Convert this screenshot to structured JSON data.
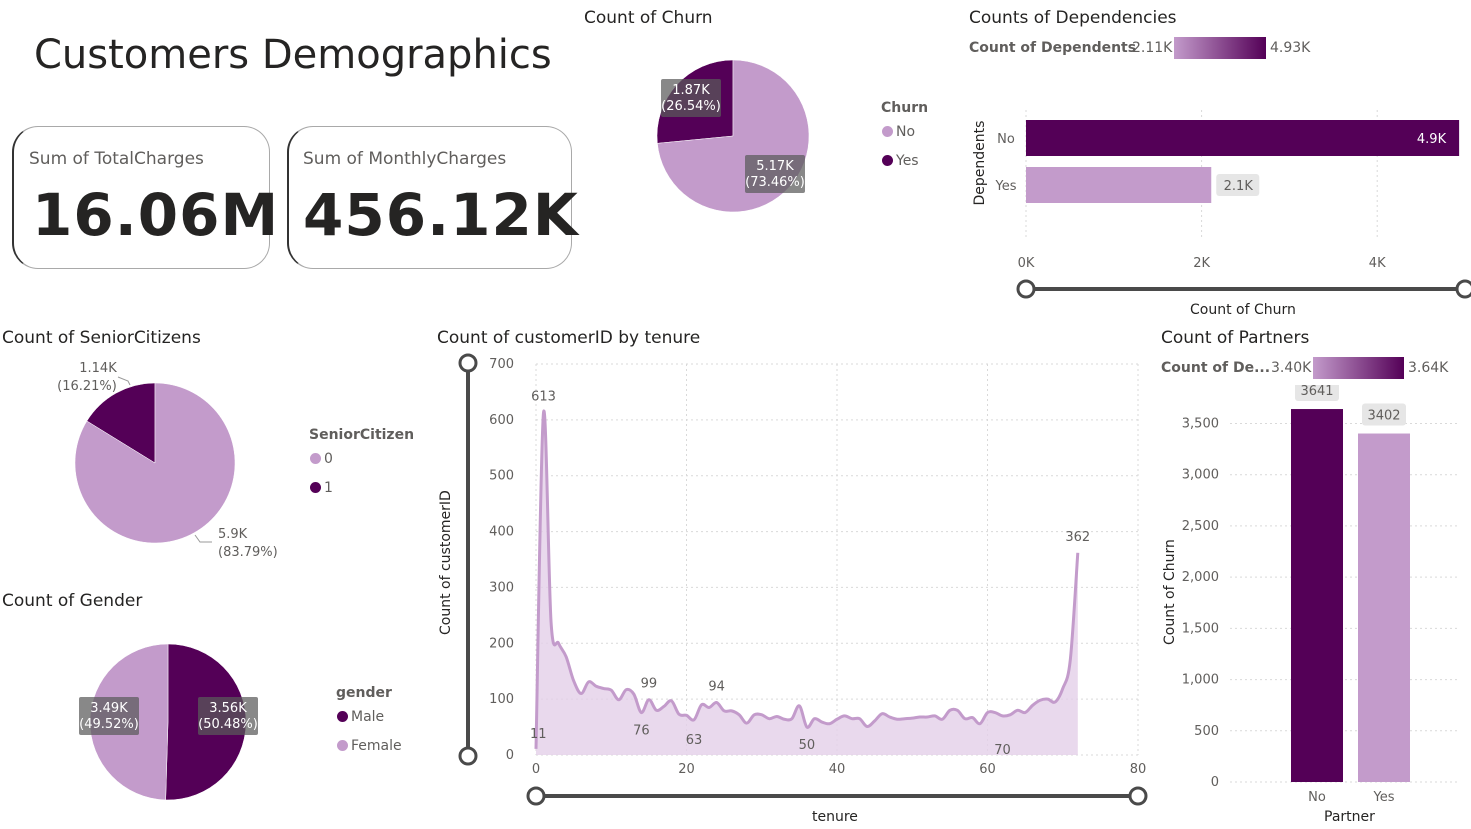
{
  "colors": {
    "light": "#c39bcb",
    "dark": "#540057",
    "grid": "#d9d9d9",
    "text": "#605e5c",
    "area": "#e4d0e8",
    "slider": "#4a4a4a"
  },
  "page_title": "Customers Demographics",
  "cards": [
    {
      "label": "Sum of TotalCharges",
      "value": "16.06M"
    },
    {
      "label": "Sum of MonthlyCharges",
      "value": "456.12K"
    }
  ],
  "churn": {
    "title": "Count of Churn",
    "legend_title": "Churn",
    "legend": [
      "No",
      "Yes"
    ]
  },
  "dependencies": {
    "title": "Counts of Dependencies",
    "gradient_label": "Count of Dependents",
    "gradient_min": "2.11K",
    "gradient_max": "4.93K",
    "y_title": "Dependents",
    "x_title": "Count of Churn"
  },
  "senior": {
    "title": "Count of SeniorCitizens",
    "legend_title": "SeniorCitizen",
    "legend": [
      "0",
      "1"
    ]
  },
  "gender": {
    "title": "Count of Gender",
    "legend_title": "gender",
    "legend": [
      "Male",
      "Female"
    ]
  },
  "tenure": {
    "title": "Count of customerID by tenure",
    "y_title": "Count of customerID",
    "x_title": "tenure"
  },
  "partners": {
    "title": "Count of Partners",
    "gradient_label": "Count of De...",
    "gradient_min": "3.40K",
    "gradient_max": "3.64K",
    "y_title": "Count of Churn",
    "x_title": "Partner"
  },
  "chart_data": [
    {
      "id": "churn_pie",
      "type": "pie",
      "title": "Count of Churn",
      "slices": [
        {
          "name": "No",
          "value": 5174,
          "label": "5.17K",
          "pct": "(73.46%)"
        },
        {
          "name": "Yes",
          "value": 1869,
          "label": "1.87K",
          "pct": "(26.54%)"
        }
      ]
    },
    {
      "id": "dependents_bar",
      "type": "bar",
      "title": "Counts of Dependencies",
      "orientation": "horizontal",
      "categories": [
        "No",
        "Yes"
      ],
      "values": [
        4933,
        2110
      ],
      "data_labels": [
        "4.9K",
        "2.1K"
      ],
      "xlabel": "Count of Churn",
      "ylabel": "Dependents",
      "xlim": [
        0,
        5000
      ],
      "xticks": [
        0,
        2000,
        4000
      ],
      "xtick_labels": [
        "0K",
        "2K",
        "4K"
      ]
    },
    {
      "id": "senior_pie",
      "type": "pie",
      "title": "Count of SeniorCitizens",
      "slices": [
        {
          "name": "0",
          "value": 5901,
          "label": "5.9K",
          "pct": "(83.79%)"
        },
        {
          "name": "1",
          "value": 1142,
          "label": "1.14K",
          "pct": "(16.21%)"
        }
      ]
    },
    {
      "id": "gender_pie",
      "type": "pie",
      "title": "Count of Gender",
      "slices": [
        {
          "name": "Male",
          "value": 3555,
          "label": "3.56K",
          "pct": "(50.48%)"
        },
        {
          "name": "Female",
          "value": 3488,
          "label": "3.49K",
          "pct": "(49.52%)"
        }
      ]
    },
    {
      "id": "tenure_area",
      "type": "area",
      "title": "Count of customerID by tenure",
      "xlabel": "tenure",
      "ylabel": "Count of customerID",
      "xlim": [
        0,
        80
      ],
      "ylim": [
        0,
        700
      ],
      "xticks": [
        0,
        20,
        40,
        60,
        80
      ],
      "yticks": [
        0,
        100,
        200,
        300,
        400,
        500,
        600,
        700
      ],
      "x": [
        0,
        1,
        2,
        3,
        4,
        5,
        6,
        7,
        8,
        9,
        10,
        11,
        12,
        13,
        14,
        15,
        16,
        17,
        18,
        19,
        20,
        21,
        22,
        23,
        24,
        25,
        26,
        27,
        28,
        29,
        30,
        31,
        32,
        33,
        34,
        35,
        36,
        37,
        38,
        39,
        40,
        41,
        42,
        43,
        44,
        45,
        46,
        47,
        48,
        49,
        50,
        51,
        52,
        53,
        54,
        55,
        56,
        57,
        58,
        59,
        60,
        61,
        62,
        63,
        64,
        65,
        66,
        67,
        68,
        69,
        70,
        71,
        72
      ],
      "y": [
        11,
        613,
        238,
        200,
        176,
        133,
        110,
        131,
        123,
        119,
        116,
        99,
        117,
        109,
        76,
        99,
        80,
        87,
        97,
        73,
        71,
        63,
        90,
        85,
        94,
        79,
        79,
        72,
        57,
        72,
        72,
        65,
        69,
        64,
        65,
        88,
        50,
        65,
        59,
        56,
        64,
        70,
        65,
        65,
        51,
        61,
        74,
        68,
        64,
        65,
        66,
        68,
        68,
        70,
        64,
        80,
        80,
        65,
        67,
        56,
        76,
        76,
        70,
        72,
        80,
        76,
        89,
        98,
        100,
        95,
        119,
        170,
        362
      ],
      "point_labels": [
        {
          "x": 0,
          "text": "11"
        },
        {
          "x": 1,
          "text": "613"
        },
        {
          "x": 14,
          "text": "76"
        },
        {
          "x": 15,
          "text": "99"
        },
        {
          "x": 21,
          "text": "63"
        },
        {
          "x": 24,
          "text": "94"
        },
        {
          "x": 36,
          "text": "50"
        },
        {
          "x": 62,
          "text": "70"
        },
        {
          "x": 72,
          "text": "362"
        }
      ]
    },
    {
      "id": "partner_bar",
      "type": "bar",
      "title": "Count of Partners",
      "categories": [
        "No",
        "Yes"
      ],
      "values": [
        3641,
        3402
      ],
      "data_labels": [
        "3641",
        "3402"
      ],
      "xlabel": "Partner",
      "ylabel": "Count of Churn",
      "ylim": [
        0,
        3700
      ],
      "yticks": [
        0,
        500,
        1000,
        1500,
        2000,
        2500,
        3000,
        3500
      ],
      "ytick_labels": [
        "0",
        "500",
        "1,000",
        "1,500",
        "2,000",
        "2,500",
        "3,000",
        "3,500"
      ]
    }
  ]
}
